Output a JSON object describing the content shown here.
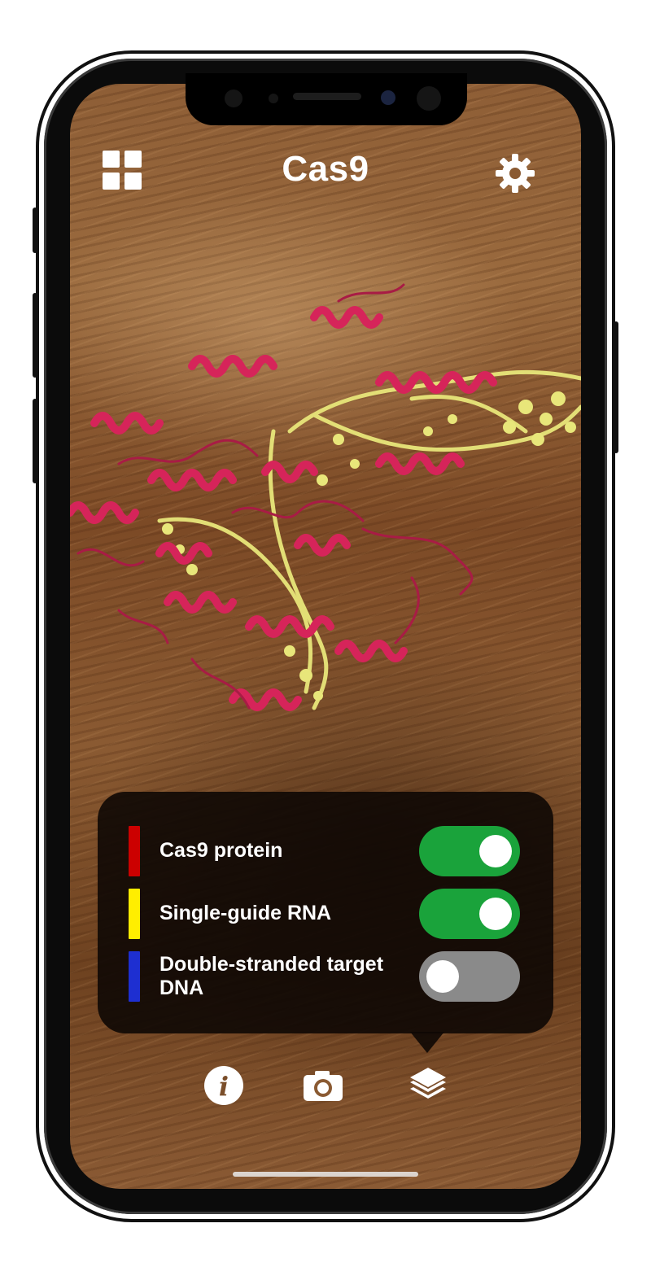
{
  "app": {
    "title": "Cas9"
  },
  "header": {
    "left_icon": "grid-icon",
    "right_icon": "gear-icon"
  },
  "molecule": {
    "description_icon": "cas9-3d-model",
    "protein_color": "#d6245a",
    "rna_color": "#e8e67a"
  },
  "layers_panel": {
    "layers": [
      {
        "label": "Cas9 protein",
        "color": "#cc0000",
        "enabled": true
      },
      {
        "label": "Single-guide RNA",
        "color": "#ffee00",
        "enabled": true
      },
      {
        "label": "Double-stranded target DNA",
        "color": "#1e2fd1",
        "enabled": false
      }
    ],
    "toggle_on_color": "#1aa33b",
    "toggle_off_color": "#8a8a8a"
  },
  "toolbar": {
    "items": [
      {
        "icon": "info-icon"
      },
      {
        "icon": "camera-icon"
      },
      {
        "icon": "layers-icon",
        "active": true
      }
    ]
  }
}
